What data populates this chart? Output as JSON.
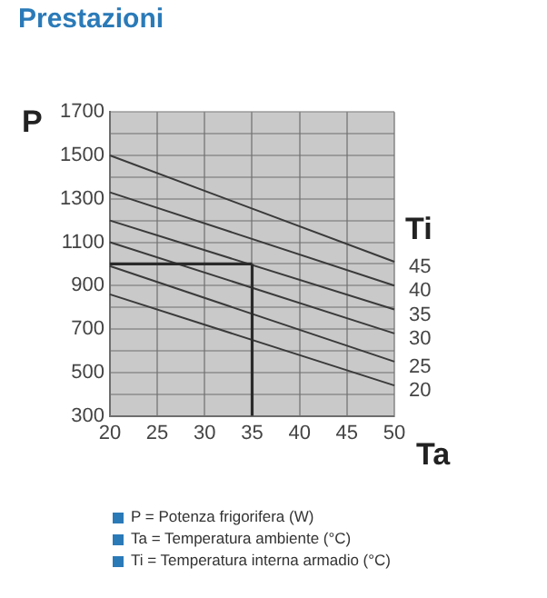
{
  "chart_data": {
    "type": "line",
    "title": "Prestazioni",
    "xlabel": "Ta",
    "ylabel": "P",
    "legend_title": "Ti",
    "x": [
      20,
      50
    ],
    "series": [
      {
        "name": "45",
        "color": "#3a3a3a",
        "values": [
          1500,
          1010
        ]
      },
      {
        "name": "40",
        "color": "#3a3a3a",
        "values": [
          1330,
          900
        ]
      },
      {
        "name": "35",
        "color": "#3a3a3a",
        "values": [
          1200,
          790
        ]
      },
      {
        "name": "30",
        "color": "#3a3a3a",
        "values": [
          1100,
          680
        ]
      },
      {
        "name": "25",
        "color": "#3a3a3a",
        "values": [
          990,
          550
        ]
      },
      {
        "name": "20",
        "color": "#3a3a3a",
        "values": [
          860,
          440
        ]
      }
    ],
    "ref_lines": [
      {
        "axis": "y",
        "value": 1000,
        "color": "#2a2a2a"
      },
      {
        "axis": "x",
        "value": 35,
        "color": "#2a2a2a"
      }
    ],
    "xlim": [
      20,
      50
    ],
    "xticks": [
      20,
      25,
      30,
      35,
      40,
      45,
      50
    ],
    "ylim": [
      300,
      1700
    ],
    "yticks": [
      300,
      {
        "value": 400,
        "label": null
      },
      500,
      {
        "value": 600,
        "label": null
      },
      700,
      {
        "value": 800,
        "label": null
      },
      900,
      {
        "value": 1000,
        "label": null
      },
      1100,
      {
        "value": 1200,
        "label": null
      },
      1300,
      {
        "value": 1400,
        "label": null
      },
      1500,
      {
        "value": 1600,
        "label": null
      },
      1700
    ],
    "grid": true,
    "annotations": [
      "P = Potenza frigorifera (W)",
      "Ta = Temperatura ambiente (°C)",
      "Ti = Temperatura interna armadio (°C)"
    ]
  }
}
